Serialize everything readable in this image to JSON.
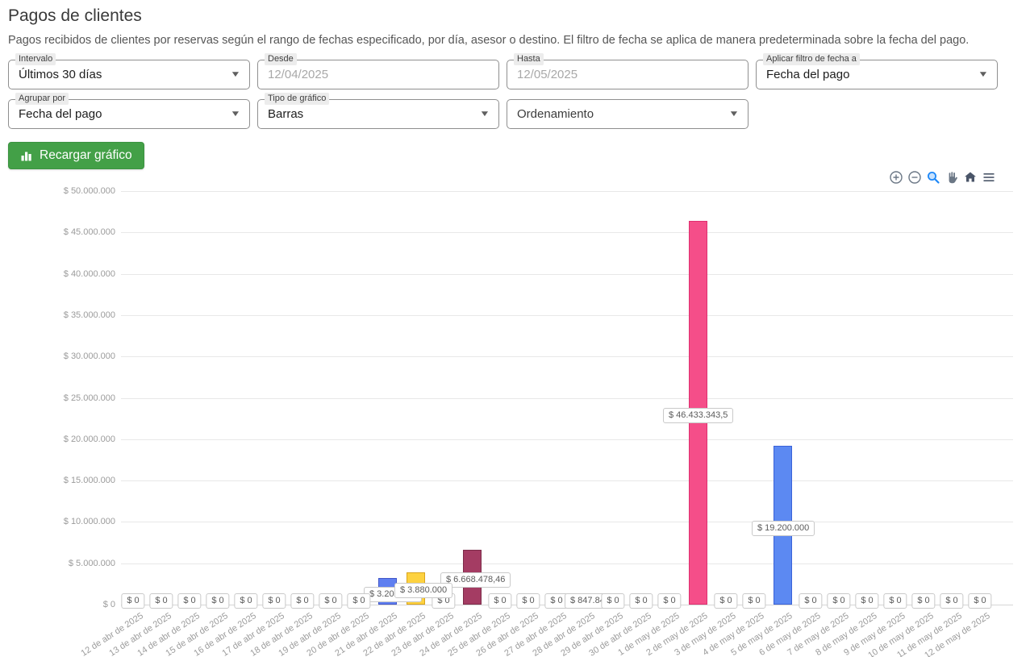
{
  "page": {
    "title": "Pagos de clientes",
    "description": "Pagos recibidos de clientes por reservas según el rango de fechas especificado, por día, asesor o destino. El filtro de fecha se aplica de manera predeterminada sobre la fecha del pago."
  },
  "filters": {
    "intervalo": {
      "label": "Intervalo",
      "value": "Últimos 30 días"
    },
    "desde": {
      "label": "Desde",
      "value": "12/04/2025"
    },
    "hasta": {
      "label": "Hasta",
      "value": "12/05/2025"
    },
    "aplicar": {
      "label": "Aplicar filtro de fecha a",
      "value": "Fecha del pago"
    },
    "agrupar": {
      "label": "Agrupar por",
      "value": "Fecha del pago"
    },
    "tipo": {
      "label": "Tipo de gráfico",
      "value": "Barras"
    },
    "ordenamiento": {
      "placeholder": "Ordenamiento"
    }
  },
  "reload_button": {
    "label": "Recargar gráfico",
    "color": "#43a047"
  },
  "chart_toolbar_icons": [
    "zoom-in-icon",
    "zoom-out-icon",
    "box-zoom-icon",
    "pan-icon",
    "home-icon",
    "menu-icon"
  ],
  "chart_data": {
    "type": "bar",
    "title": "",
    "xlabel": "",
    "ylabel": "",
    "ylim": [
      0,
      50000000
    ],
    "grid": "horizontal",
    "legend": "none",
    "y_ticks": [
      "$ 0",
      "$ 5.000.000",
      "$ 10.000.000",
      "$ 15.000.000",
      "$ 20.000.000",
      "$ 25.000.000",
      "$ 30.000.000",
      "$ 35.000.000",
      "$ 40.000.000",
      "$ 45.000.000",
      "$ 50.000.000"
    ],
    "categories": [
      "12 de abr de 2025",
      "13 de abr de 2025",
      "14 de abr de 2025",
      "15 de abr de 2025",
      "16 de abr de 2025",
      "17 de abr de 2025",
      "18 de abr de 2025",
      "19 de abr de 2025",
      "20 de abr de 2025",
      "21 de abr de 2025",
      "22 de abr de 2025",
      "23 de abr de 2025",
      "24 de abr de 2025",
      "25 de abr de 2025",
      "26 de abr de 2025",
      "27 de abr de 2025",
      "28 de abr de 2025",
      "29 de abr de 2025",
      "30 de abr de 2025",
      "1 de may de 2025",
      "2 de may de 2025",
      "3 de may de 2025",
      "4 de may de 2025",
      "5 de may de 2025",
      "6 de may de 2025",
      "7 de may de 2025",
      "8 de may de 2025",
      "9 de may de 2025",
      "10 de may de 2025",
      "11 de may de 2025",
      "12 de may de 2025"
    ],
    "values": [
      0,
      0,
      0,
      0,
      0,
      0,
      0,
      0,
      0,
      3200000,
      3880000,
      0,
      6668478.46,
      0,
      0,
      0,
      847846,
      0,
      0,
      0,
      46433343.5,
      0,
      0,
      19200000,
      0,
      0,
      0,
      0,
      0,
      0,
      0
    ],
    "value_labels": [
      "$ 0",
      "$ 0",
      "$ 0",
      "$ 0",
      "$ 0",
      "$ 0",
      "$ 0",
      "$ 0",
      "$ 0",
      "$ 3.200.000",
      "$ 3.880.000",
      "$ 0",
      "$ 6.668.478,46",
      "$ 0",
      "$ 0",
      "$ 0",
      "$ 847.846",
      "$ 0",
      "$ 0",
      "$ 0",
      "$ 46.433.343,5",
      "$ 0",
      "$ 0",
      "$ 19.200.000",
      "$ 0",
      "$ 0",
      "$ 0",
      "$ 0",
      "$ 0",
      "$ 0",
      "$ 0"
    ],
    "bar_colors": [
      "#64a0f5",
      "#79d65e",
      "#de85e0",
      "#ef5f8d",
      "#f9a14a",
      "#55944e",
      "#5253a8",
      "#ee8273",
      "#8fdf8f",
      "#5f7ff0",
      "#fdd240",
      "#ee5878",
      "#a43c63",
      "#7c3f5c",
      "#6ed65e",
      "#f2714f",
      "#e8c06a",
      "#5adfb8",
      "#6ea8f7",
      "#a2e87b",
      "#f54e89",
      "#e86edf",
      "#b07ef0",
      "#5c89f2",
      "#f5b455",
      "#5fd8c8",
      "#8ff0c0",
      "#f772a2",
      "#90f098",
      "#f5d45f",
      "#b579f2"
    ],
    "bar_strokes": [
      "#64a0f5",
      "#79d65e",
      "#de85e0",
      "#ef5f8d",
      "#f9a14a",
      "#55944e",
      "#5253a8",
      "#ee8273",
      "#8fdf8f",
      "#4257c9",
      "#d9a41c",
      "#ee5878",
      "#7c2b49",
      "#7c3f5c",
      "#6ed65e",
      "#f2714f",
      "#caa23f",
      "#5adfb8",
      "#6ea8f7",
      "#a2e87b",
      "#df2f70",
      "#e86edf",
      "#b07ef0",
      "#3a62d8",
      "#f5b455",
      "#5fd8c8",
      "#8ff0c0",
      "#f772a2",
      "#90f098",
      "#f5d45f",
      "#b579f2"
    ]
  }
}
